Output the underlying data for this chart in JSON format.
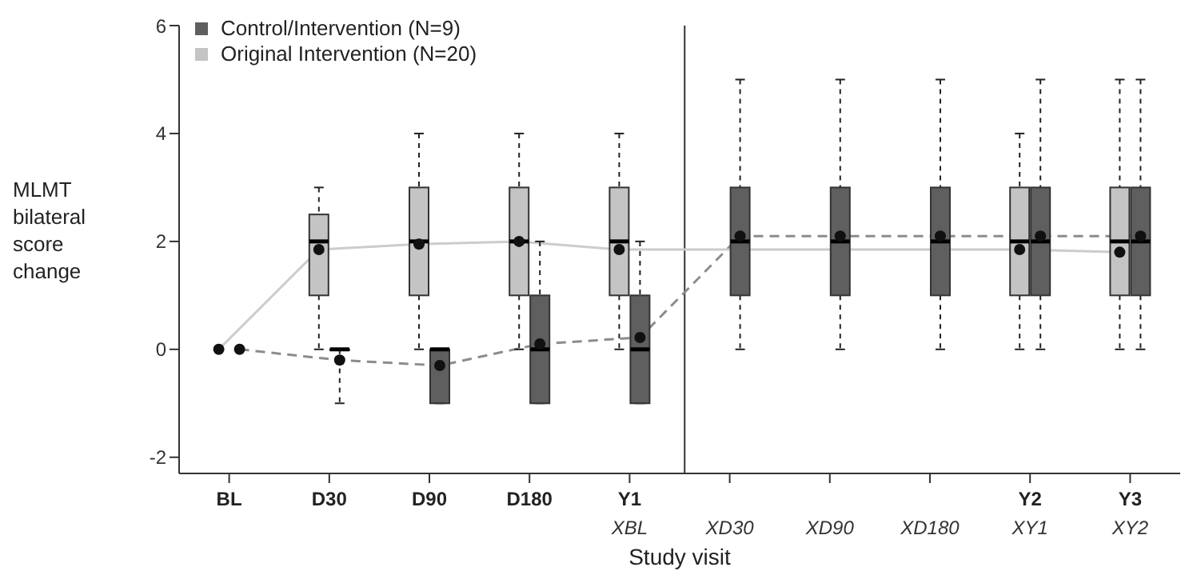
{
  "chart_data": {
    "type": "box",
    "ylabel": "MLMT bilateral score change",
    "xlabel": "Study visit",
    "legend": "top left",
    "categories": [
      "BL",
      "D30",
      "D90",
      "D180",
      "Y1\nXBL",
      "\nXD30",
      "\nXD90",
      "\nXD180",
      "Y2\nXY1",
      "Y3\nXY2"
    ],
    "ylim": [
      -2.3,
      6
    ],
    "yticks": [
      -2,
      0,
      2,
      4,
      6
    ],
    "ref_lines": [
      {
        "axis": "x",
        "value": "\nXD30",
        "color": "#333333"
      }
    ],
    "series": [
      {
        "name": "Control/Intervention (N=9)",
        "type": "box",
        "color": "#5f5f5f",
        "boxes": [
          null,
          {
            "low": -1,
            "q1": 0,
            "median": 0,
            "q3": 0,
            "high": 0
          },
          {
            "low": -1,
            "q1": -1,
            "median": 0,
            "q3": 0,
            "high": 0
          },
          {
            "low": -1,
            "q1": -1,
            "median": 0,
            "q3": 1,
            "high": 2
          },
          {
            "low": -1,
            "q1": -1,
            "median": 0,
            "q3": 1,
            "high": 2
          },
          {
            "low": 0,
            "q1": 1,
            "median": 2,
            "q3": 3,
            "high": 5
          },
          {
            "low": 0,
            "q1": 1,
            "median": 2,
            "q3": 3,
            "high": 5
          },
          {
            "low": 0,
            "q1": 1,
            "median": 2,
            "q3": 3,
            "high": 5
          },
          {
            "low": 0,
            "q1": 1,
            "median": 2,
            "q3": 3,
            "high": 5
          },
          {
            "low": 0,
            "q1": 1,
            "median": 2,
            "q3": 3,
            "high": 5
          }
        ]
      },
      {
        "name": "Original Intervention (N=20)",
        "type": "box",
        "color": "#c4c4c4",
        "boxes": [
          null,
          {
            "low": 0,
            "q1": 1,
            "median": 2,
            "q3": 2.5,
            "high": 3
          },
          {
            "low": 0,
            "q1": 1,
            "median": 2,
            "q3": 3,
            "high": 4
          },
          {
            "low": 0,
            "q1": 1,
            "median": 2,
            "q3": 3,
            "high": 4
          },
          {
            "low": 0,
            "q1": 1,
            "median": 2,
            "q3": 3,
            "high": 4
          },
          null,
          null,
          null,
          {
            "low": 0,
            "q1": 1,
            "median": 2,
            "q3": 3,
            "high": 4
          },
          {
            "low": 0,
            "q1": 1,
            "median": 2,
            "q3": 3,
            "high": 5
          }
        ]
      },
      {
        "type": "line",
        "color": "#8c8c8c",
        "line_style": "dashed",
        "marker": "circle",
        "values": [
          0,
          -0.2,
          -0.3,
          0.1,
          0.22,
          2.1,
          2.1,
          2.1,
          2.1,
          2.1
        ]
      },
      {
        "type": "line",
        "color": "#cccccc",
        "line_style": "solid",
        "marker": "circle",
        "values": [
          0,
          1.85,
          1.95,
          2,
          1.85,
          null,
          null,
          null,
          1.85,
          1.8
        ]
      }
    ]
  }
}
